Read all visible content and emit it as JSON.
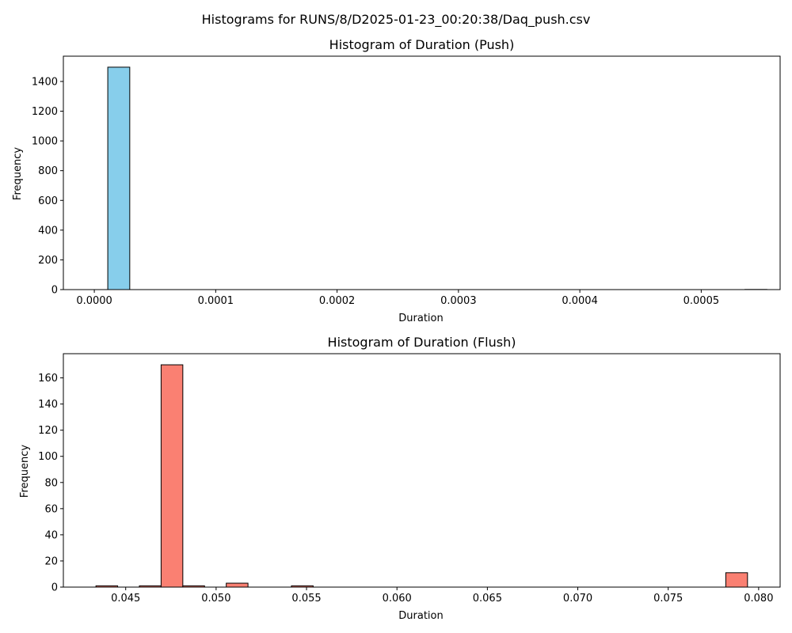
{
  "suptitle": "Histograms for RUNS/8/D2025-01-23_00:20:38/Daq_push.csv",
  "chart_data": [
    {
      "type": "bar",
      "title": "Histogram of Duration (Push)",
      "xlabel": "Duration",
      "ylabel": "Frequency",
      "xlim": [
        -2.55e-05,
        0.000565
      ],
      "ylim": [
        0,
        1570
      ],
      "xticks": [
        0.0,
        0.0001,
        0.0002,
        0.0003,
        0.0004,
        0.0005
      ],
      "xtick_labels": [
        "0.0000",
        "0.0001",
        "0.0002",
        "0.0003",
        "0.0004",
        "0.0005"
      ],
      "yticks": [
        0,
        200,
        400,
        600,
        800,
        1000,
        1200,
        1400
      ],
      "ytick_labels": [
        "0",
        "200",
        "400",
        "600",
        "800",
        "1000",
        "1200",
        "1400"
      ],
      "color": "#87CEEB",
      "edgecolor": "#000000",
      "bins": [
        {
          "x0": 1.11e-05,
          "x1": 2.92e-05,
          "count": 1496
        },
        {
          "x0": 2.92e-05,
          "x1": 4.73e-05,
          "count": 0
        },
        {
          "x0": 4.73e-05,
          "x1": 6.54e-05,
          "count": 0
        },
        {
          "x0": 6.54e-05,
          "x1": 8.35e-05,
          "count": 0
        },
        {
          "x0": 8.35e-05,
          "x1": 0.0001016,
          "count": 0
        },
        {
          "x0": 0.0001016,
          "x1": 0.0001197,
          "count": 0
        },
        {
          "x0": 0.0001197,
          "x1": 0.0001378,
          "count": 0
        },
        {
          "x0": 0.0001378,
          "x1": 0.0001559,
          "count": 0
        },
        {
          "x0": 0.0001559,
          "x1": 0.000174,
          "count": 0
        },
        {
          "x0": 0.000174,
          "x1": 0.0001921,
          "count": 0
        },
        {
          "x0": 0.0001921,
          "x1": 0.0002102,
          "count": 0
        },
        {
          "x0": 0.0002102,
          "x1": 0.0002283,
          "count": 0
        },
        {
          "x0": 0.0002283,
          "x1": 0.0002464,
          "count": 0
        },
        {
          "x0": 0.0002464,
          "x1": 0.0002645,
          "count": 0
        },
        {
          "x0": 0.0002645,
          "x1": 0.0002826,
          "count": 0
        },
        {
          "x0": 0.0002826,
          "x1": 0.0003007,
          "count": 0
        },
        {
          "x0": 0.0003007,
          "x1": 0.0003188,
          "count": 0
        },
        {
          "x0": 0.0003188,
          "x1": 0.0003369,
          "count": 0
        },
        {
          "x0": 0.0003369,
          "x1": 0.000355,
          "count": 0
        },
        {
          "x0": 0.000355,
          "x1": 0.0003731,
          "count": 0
        },
        {
          "x0": 0.0003731,
          "x1": 0.0003912,
          "count": 0
        },
        {
          "x0": 0.0003912,
          "x1": 0.0004093,
          "count": 0
        },
        {
          "x0": 0.0004093,
          "x1": 0.0004274,
          "count": 0
        },
        {
          "x0": 0.0004274,
          "x1": 0.0004455,
          "count": 0
        },
        {
          "x0": 0.0004455,
          "x1": 0.0004636,
          "count": 0
        },
        {
          "x0": 0.0004636,
          "x1": 0.0004817,
          "count": 0
        },
        {
          "x0": 0.0004817,
          "x1": 0.0004998,
          "count": 0
        },
        {
          "x0": 0.0004998,
          "x1": 0.0005179,
          "count": 0
        },
        {
          "x0": 0.0005179,
          "x1": 0.000536,
          "count": 0
        },
        {
          "x0": 0.000536,
          "x1": 0.0005541,
          "count": 1
        }
      ]
    },
    {
      "type": "bar",
      "title": "Histogram of Duration (Flush)",
      "xlabel": "Duration",
      "ylabel": "Frequency",
      "xlim": [
        0.041553,
        0.081188
      ],
      "ylim": [
        0,
        178.5
      ],
      "xticks": [
        0.045,
        0.05,
        0.055,
        0.06,
        0.065,
        0.07,
        0.075,
        0.08
      ],
      "xtick_labels": [
        "0.045",
        "0.050",
        "0.055",
        "0.060",
        "0.065",
        "0.070",
        "0.075",
        "0.080"
      ],
      "yticks": [
        0,
        20,
        40,
        60,
        80,
        100,
        120,
        140,
        160
      ],
      "ytick_labels": [
        "0",
        "20",
        "40",
        "60",
        "80",
        "100",
        "120",
        "140",
        "160"
      ],
      "color": "#FA8072",
      "edgecolor": "#000000",
      "bins": [
        {
          "x0": 0.043355,
          "x1": 0.044556,
          "count": 1
        },
        {
          "x0": 0.044556,
          "x1": 0.045757,
          "count": 0
        },
        {
          "x0": 0.045757,
          "x1": 0.046958,
          "count": 1
        },
        {
          "x0": 0.046958,
          "x1": 0.048159,
          "count": 170
        },
        {
          "x0": 0.048159,
          "x1": 0.04936,
          "count": 1
        },
        {
          "x0": 0.04936,
          "x1": 0.050561,
          "count": 0
        },
        {
          "x0": 0.050561,
          "x1": 0.051762,
          "count": 3
        },
        {
          "x0": 0.051762,
          "x1": 0.052963,
          "count": 0
        },
        {
          "x0": 0.052963,
          "x1": 0.054164,
          "count": 0
        },
        {
          "x0": 0.054164,
          "x1": 0.055365,
          "count": 1
        },
        {
          "x0": 0.055365,
          "x1": 0.056566,
          "count": 0
        },
        {
          "x0": 0.056566,
          "x1": 0.057767,
          "count": 0
        },
        {
          "x0": 0.057767,
          "x1": 0.058968,
          "count": 0
        },
        {
          "x0": 0.058968,
          "x1": 0.060169,
          "count": 0
        },
        {
          "x0": 0.060169,
          "x1": 0.06137,
          "count": 0
        },
        {
          "x0": 0.06137,
          "x1": 0.062571,
          "count": 0
        },
        {
          "x0": 0.062571,
          "x1": 0.063772,
          "count": 0
        },
        {
          "x0": 0.063772,
          "x1": 0.064973,
          "count": 0
        },
        {
          "x0": 0.064973,
          "x1": 0.066174,
          "count": 0
        },
        {
          "x0": 0.066174,
          "x1": 0.067375,
          "count": 0
        },
        {
          "x0": 0.067375,
          "x1": 0.068576,
          "count": 0
        },
        {
          "x0": 0.068576,
          "x1": 0.069777,
          "count": 0
        },
        {
          "x0": 0.069777,
          "x1": 0.070978,
          "count": 0
        },
        {
          "x0": 0.070978,
          "x1": 0.072179,
          "count": 0
        },
        {
          "x0": 0.072179,
          "x1": 0.07338,
          "count": 0
        },
        {
          "x0": 0.07338,
          "x1": 0.074581,
          "count": 0
        },
        {
          "x0": 0.074581,
          "x1": 0.075782,
          "count": 0
        },
        {
          "x0": 0.075782,
          "x1": 0.076983,
          "count": 0
        },
        {
          "x0": 0.076983,
          "x1": 0.078184,
          "count": 0
        },
        {
          "x0": 0.078184,
          "x1": 0.079385,
          "count": 11
        }
      ]
    }
  ]
}
